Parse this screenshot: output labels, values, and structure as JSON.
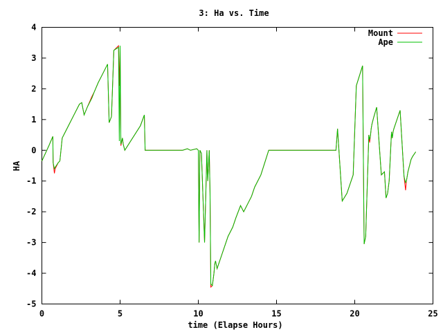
{
  "chart_data": {
    "type": "line",
    "title": "3: Ha vs. Time",
    "xlabel": "time (Elapse Hours)",
    "ylabel": "HA",
    "xlim": [
      0,
      25
    ],
    "ylim": [
      -5,
      4
    ],
    "xticks": [
      0,
      5,
      10,
      15,
      20,
      25
    ],
    "yticks": [
      -5,
      -4,
      -3,
      -2,
      -1,
      0,
      1,
      2,
      3,
      4
    ],
    "grid": false,
    "legend_position": "top-right",
    "series": [
      {
        "name": "Mount",
        "color": "#ff0000",
        "x": [
          0.0,
          0.45,
          0.7,
          0.72,
          0.8,
          0.85,
          1.05,
          1.15,
          1.3,
          1.5,
          1.8,
          2.1,
          2.4,
          2.55,
          2.7,
          2.9,
          3.2,
          3.35,
          3.6,
          3.9,
          4.2,
          4.3,
          4.45,
          4.6,
          4.9,
          4.95,
          5.0,
          5.05,
          5.15,
          5.2,
          5.3,
          6.3,
          6.55,
          6.6,
          6.7,
          9.0,
          9.3,
          9.5,
          9.9,
          10.0,
          10.05,
          10.1,
          10.2,
          10.4,
          10.55,
          10.6,
          10.7,
          10.75,
          10.8,
          10.9,
          11.0,
          11.05,
          11.1,
          11.2,
          11.3,
          11.5,
          11.7,
          11.9,
          12.2,
          12.4,
          12.7,
          12.9,
          13.0,
          13.2,
          13.4,
          13.6,
          14.0,
          14.5,
          14.8,
          15.0,
          15.5,
          16.0,
          17.0,
          18.0,
          18.6,
          18.8,
          18.9,
          19.2,
          19.5,
          19.9,
          20.1,
          20.5,
          20.6,
          20.7,
          20.9,
          20.95,
          21.0,
          21.05,
          21.1,
          21.2,
          21.4,
          21.7,
          21.9,
          22.0,
          22.1,
          22.2,
          22.35,
          22.4,
          22.45,
          22.5,
          22.9,
          23.15,
          23.25,
          23.3,
          23.32,
          23.4,
          23.5,
          23.6,
          23.7,
          23.9
        ],
        "y": [
          -0.35,
          0.15,
          0.45,
          -0.4,
          -0.75,
          -0.6,
          -0.4,
          -0.35,
          0.4,
          0.6,
          0.9,
          1.2,
          1.5,
          1.55,
          1.15,
          1.4,
          1.75,
          1.9,
          2.2,
          2.5,
          2.8,
          0.9,
          1.1,
          3.25,
          3.4,
          2.1,
          3.3,
          0.15,
          0.4,
          0.2,
          0.0,
          0.8,
          1.15,
          0.0,
          0.0,
          0.0,
          0.05,
          0.0,
          0.05,
          0.0,
          -3.0,
          0.0,
          -0.1,
          -3.0,
          0.0,
          -1.0,
          0.0,
          -1.4,
          -4.45,
          -4.4,
          -4.0,
          -3.7,
          -3.6,
          -3.85,
          -3.7,
          -3.4,
          -3.1,
          -2.8,
          -2.5,
          -2.2,
          -1.8,
          -2.0,
          -1.9,
          -1.7,
          -1.5,
          -1.2,
          -0.8,
          0.0,
          0.0,
          0.0,
          0.0,
          0.0,
          0.0,
          0.0,
          0.0,
          0.0,
          0.7,
          -1.65,
          -1.4,
          -0.8,
          2.1,
          2.75,
          -3.05,
          -2.8,
          0.5,
          0.25,
          0.45,
          0.7,
          0.85,
          1.05,
          1.4,
          -0.8,
          -0.7,
          -1.55,
          -1.4,
          -1.0,
          0.6,
          0.4,
          0.6,
          0.7,
          1.3,
          -0.85,
          -1.3,
          -1.0,
          -0.95,
          -0.7,
          -0.5,
          -0.3,
          -0.2,
          -0.05
        ]
      },
      {
        "name": "Ape",
        "color": "#00c000",
        "x": [
          0.0,
          0.45,
          0.7,
          0.72,
          0.8,
          0.85,
          1.05,
          1.15,
          1.3,
          1.5,
          1.8,
          2.1,
          2.4,
          2.55,
          2.7,
          2.9,
          3.2,
          3.35,
          3.6,
          3.9,
          4.2,
          4.3,
          4.45,
          4.6,
          4.9,
          4.95,
          5.0,
          5.05,
          5.15,
          5.2,
          5.3,
          6.3,
          6.55,
          6.6,
          6.7,
          9.0,
          9.3,
          9.5,
          9.9,
          10.0,
          10.05,
          10.1,
          10.2,
          10.4,
          10.55,
          10.6,
          10.7,
          10.75,
          10.8,
          10.9,
          11.0,
          11.05,
          11.1,
          11.2,
          11.3,
          11.5,
          11.7,
          11.9,
          12.2,
          12.4,
          12.7,
          12.9,
          13.0,
          13.2,
          13.4,
          13.6,
          14.0,
          14.5,
          14.8,
          15.0,
          15.5,
          16.0,
          17.0,
          18.0,
          18.6,
          18.8,
          18.9,
          19.2,
          19.5,
          19.9,
          20.1,
          20.5,
          20.6,
          20.7,
          20.9,
          20.95,
          21.0,
          21.05,
          21.1,
          21.2,
          21.4,
          21.7,
          21.9,
          22.0,
          22.1,
          22.2,
          22.35,
          22.4,
          22.45,
          22.5,
          22.9,
          23.15,
          23.25,
          23.3,
          23.32,
          23.4,
          23.5,
          23.6,
          23.7,
          23.9
        ],
        "y": [
          -0.35,
          0.15,
          0.45,
          -0.4,
          -0.6,
          -0.55,
          -0.4,
          -0.35,
          0.4,
          0.6,
          0.9,
          1.2,
          1.5,
          1.55,
          1.15,
          1.4,
          1.7,
          1.9,
          2.2,
          2.5,
          2.8,
          0.9,
          1.1,
          3.25,
          3.35,
          0.3,
          3.4,
          0.2,
          0.4,
          0.2,
          0.0,
          0.8,
          1.15,
          0.0,
          0.0,
          0.0,
          0.05,
          0.0,
          0.05,
          0.0,
          -3.0,
          0.0,
          -0.1,
          -3.0,
          0.0,
          -1.0,
          0.0,
          -1.4,
          -4.35,
          -4.4,
          -4.0,
          -3.7,
          -3.6,
          -3.85,
          -3.7,
          -3.4,
          -3.1,
          -2.8,
          -2.5,
          -2.2,
          -1.8,
          -2.0,
          -1.9,
          -1.7,
          -1.5,
          -1.2,
          -0.8,
          0.0,
          0.0,
          0.0,
          0.0,
          0.0,
          0.0,
          0.0,
          0.0,
          0.0,
          0.7,
          -1.65,
          -1.4,
          -0.8,
          2.1,
          2.75,
          -3.05,
          -2.8,
          0.5,
          0.35,
          0.45,
          0.7,
          0.85,
          1.05,
          1.4,
          -0.8,
          -0.7,
          -1.55,
          -1.4,
          -1.0,
          0.6,
          0.4,
          0.6,
          0.7,
          1.3,
          -0.85,
          -1.05,
          -1.0,
          -0.95,
          -0.7,
          -0.5,
          -0.3,
          -0.2,
          -0.05
        ]
      }
    ]
  }
}
